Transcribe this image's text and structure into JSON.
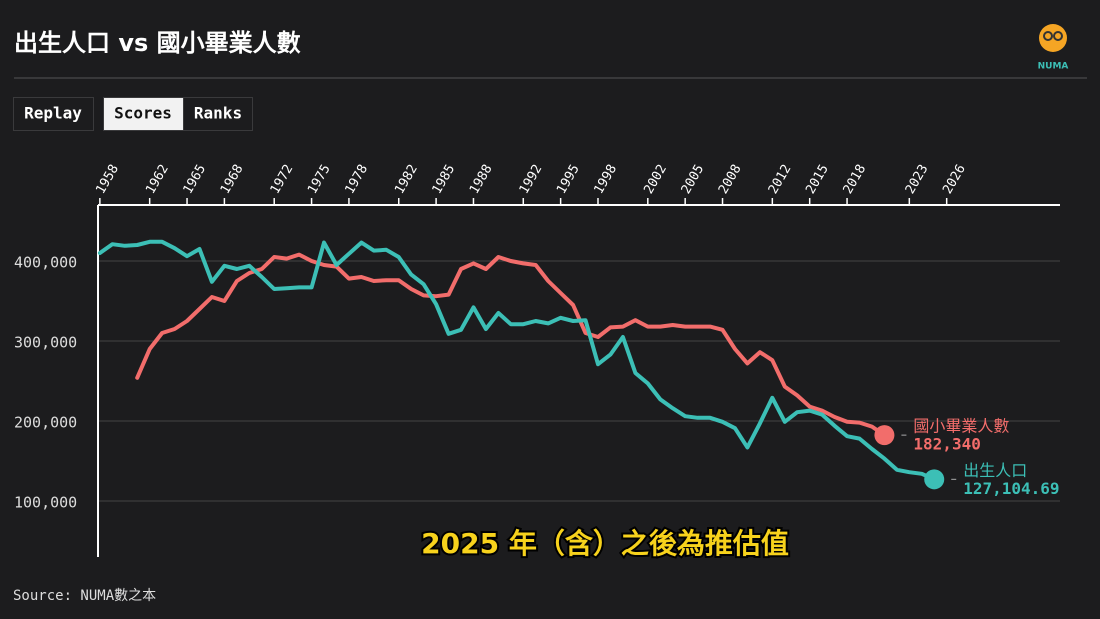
{
  "header": {
    "title": "出生人口 vs 國小畢業人數",
    "logo": "NUMA"
  },
  "controls": [
    "Replay",
    "Scores",
    "Ranks"
  ],
  "source": "Source: NUMA數之本",
  "chart_data": {
    "type": "line",
    "caption": "2025 年（含）之後為推估值",
    "x": [
      1958,
      1959,
      1960,
      1961,
      1962,
      1963,
      1964,
      1965,
      1966,
      1967,
      1968,
      1969,
      1970,
      1971,
      1972,
      1973,
      1974,
      1975,
      1976,
      1977,
      1978,
      1979,
      1980,
      1981,
      1982,
      1983,
      1984,
      1985,
      1986,
      1987,
      1988,
      1989,
      1990,
      1991,
      1992,
      1993,
      1994,
      1995,
      1996,
      1997,
      1998,
      1999,
      2000,
      2001,
      2002,
      2003,
      2004,
      2005,
      2006,
      2007,
      2008,
      2009,
      2010,
      2011,
      2012,
      2013,
      2014,
      2015,
      2016,
      2017,
      2018,
      2019,
      2020,
      2021,
      2022,
      2023,
      2024,
      2025
    ],
    "xlim": [
      1957.85,
      2035.1
    ],
    "xticks": [
      1958,
      1962,
      1965,
      1968,
      1972,
      1975,
      1978,
      1982,
      1985,
      1988,
      1992,
      1995,
      1998,
      2002,
      2005,
      2008,
      2012,
      2015,
      2018,
      2023,
      2026
    ],
    "ylim": [
      30000,
      470000
    ],
    "yticks": [
      {
        "value": 100000,
        "label": "100,000"
      },
      {
        "value": 200000,
        "label": "200,000"
      },
      {
        "value": 300000,
        "label": "300,000"
      },
      {
        "value": 400000,
        "label": "400,000"
      }
    ],
    "grid": true,
    "series": [
      {
        "name": "國小畢業人數",
        "color": "#f26d6b",
        "values": [
          null,
          null,
          null,
          254000,
          290000,
          310000,
          315000,
          325000,
          340000,
          355000,
          350000,
          375000,
          385000,
          390000,
          405000,
          403000,
          408000,
          400000,
          395000,
          393000,
          378000,
          380000,
          375000,
          376000,
          376000,
          365000,
          357000,
          356000,
          358000,
          390000,
          397000,
          390000,
          405000,
          400000,
          397000,
          395000,
          375000,
          360000,
          345000,
          310000,
          305000,
          317000,
          318000,
          326000,
          318000,
          318000,
          320000,
          318000,
          318000,
          318000,
          314000,
          290000,
          272000,
          286000,
          276000,
          243000,
          232000,
          218000,
          213000,
          205000,
          199000,
          198000,
          193000,
          182340,
          null,
          null,
          null,
          null
        ],
        "value_labels": [
          null,
          null,
          null,
          null,
          null,
          null,
          null,
          null,
          null,
          null,
          null,
          null,
          null,
          null,
          null,
          null,
          null,
          null,
          null,
          null,
          null,
          null,
          null,
          null,
          null,
          null,
          null,
          null,
          null,
          null,
          null,
          null,
          null,
          null,
          null,
          null,
          null,
          null,
          null,
          null,
          null,
          null,
          null,
          null,
          null,
          null,
          null,
          null,
          null,
          null,
          null,
          null,
          null,
          null,
          null,
          null,
          null,
          null,
          null,
          null,
          null,
          null,
          null,
          "182,340",
          null,
          null,
          null,
          null
        ]
      },
      {
        "name": "出生人口",
        "color": "#3cbfb6",
        "values": [
          410000,
          421000,
          419000,
          420000,
          424000,
          424000,
          416000,
          406000,
          415000,
          374000,
          394000,
          390000,
          394000,
          380000,
          365000,
          366000,
          367000,
          367000,
          423000,
          395000,
          409000,
          423000,
          413000,
          414000,
          405000,
          383000,
          371000,
          346000,
          309000,
          314000,
          342000,
          315000,
          335000,
          321000,
          321000,
          325000,
          322000,
          329000,
          325000,
          326000,
          271000,
          283000,
          305000,
          260000,
          247000,
          227000,
          216000,
          206000,
          204000,
          204000,
          199000,
          191000,
          167000,
          197000,
          229000,
          199000,
          211000,
          213000,
          208000,
          194000,
          181000,
          178000,
          165000,
          153000,
          139000,
          136000,
          134000,
          127104.69
        ],
        "value_labels": [
          null,
          null,
          null,
          null,
          null,
          null,
          null,
          null,
          null,
          null,
          null,
          null,
          null,
          null,
          null,
          null,
          null,
          null,
          null,
          null,
          null,
          null,
          null,
          null,
          null,
          null,
          null,
          null,
          null,
          null,
          null,
          null,
          null,
          null,
          null,
          null,
          null,
          null,
          null,
          null,
          null,
          null,
          null,
          null,
          null,
          null,
          null,
          null,
          null,
          null,
          null,
          null,
          null,
          null,
          null,
          null,
          null,
          null,
          null,
          null,
          null,
          null,
          null,
          null,
          null,
          null,
          null,
          "127,104.69"
        ]
      }
    ]
  }
}
